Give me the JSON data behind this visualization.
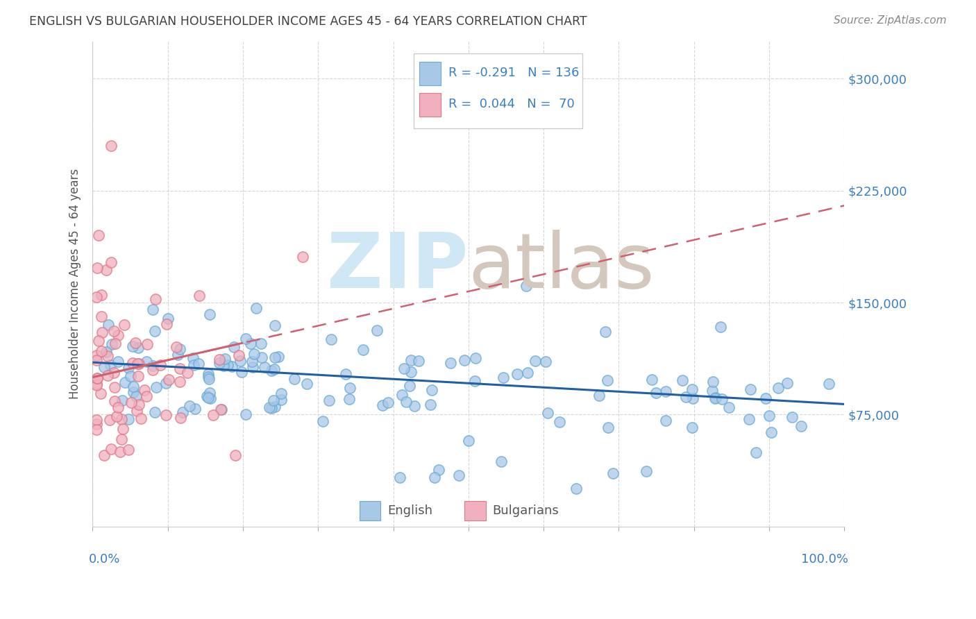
{
  "title": "ENGLISH VS BULGARIAN HOUSEHOLDER INCOME AGES 45 - 64 YEARS CORRELATION CHART",
  "source": "Source: ZipAtlas.com",
  "ylabel": "Householder Income Ages 45 - 64 years",
  "ytick_labels": [
    "$75,000",
    "$150,000",
    "$225,000",
    "$300,000"
  ],
  "ytick_values": [
    75000,
    150000,
    225000,
    300000
  ],
  "ymin": 0,
  "ymax": 325000,
  "xmin": 0.0,
  "xmax": 1.0,
  "legend_english_R": "R = -0.291",
  "legend_english_N": "N = 136",
  "legend_bulgarian_R": "R = 0.044",
  "legend_bulgarian_N": "N =  70",
  "english_fill": "#a8c8e8",
  "english_edge": "#6aaad4",
  "bulgarian_fill": "#f0b0be",
  "bulgarian_edge": "#e07888",
  "english_line_color": "#2060a0",
  "bulgarian_line_color": "#d06070",
  "title_color": "#404040",
  "source_color": "#888888",
  "axis_label_color": "#3a7fc1",
  "legend_text_color": "#3a7fc1",
  "ylabel_color": "#555555",
  "bottom_legend_color": "#555555",
  "grid_color": "#cccccc",
  "watermark_zip_color": "#d0e8f5",
  "watermark_atlas_color": "#d4c8bc"
}
